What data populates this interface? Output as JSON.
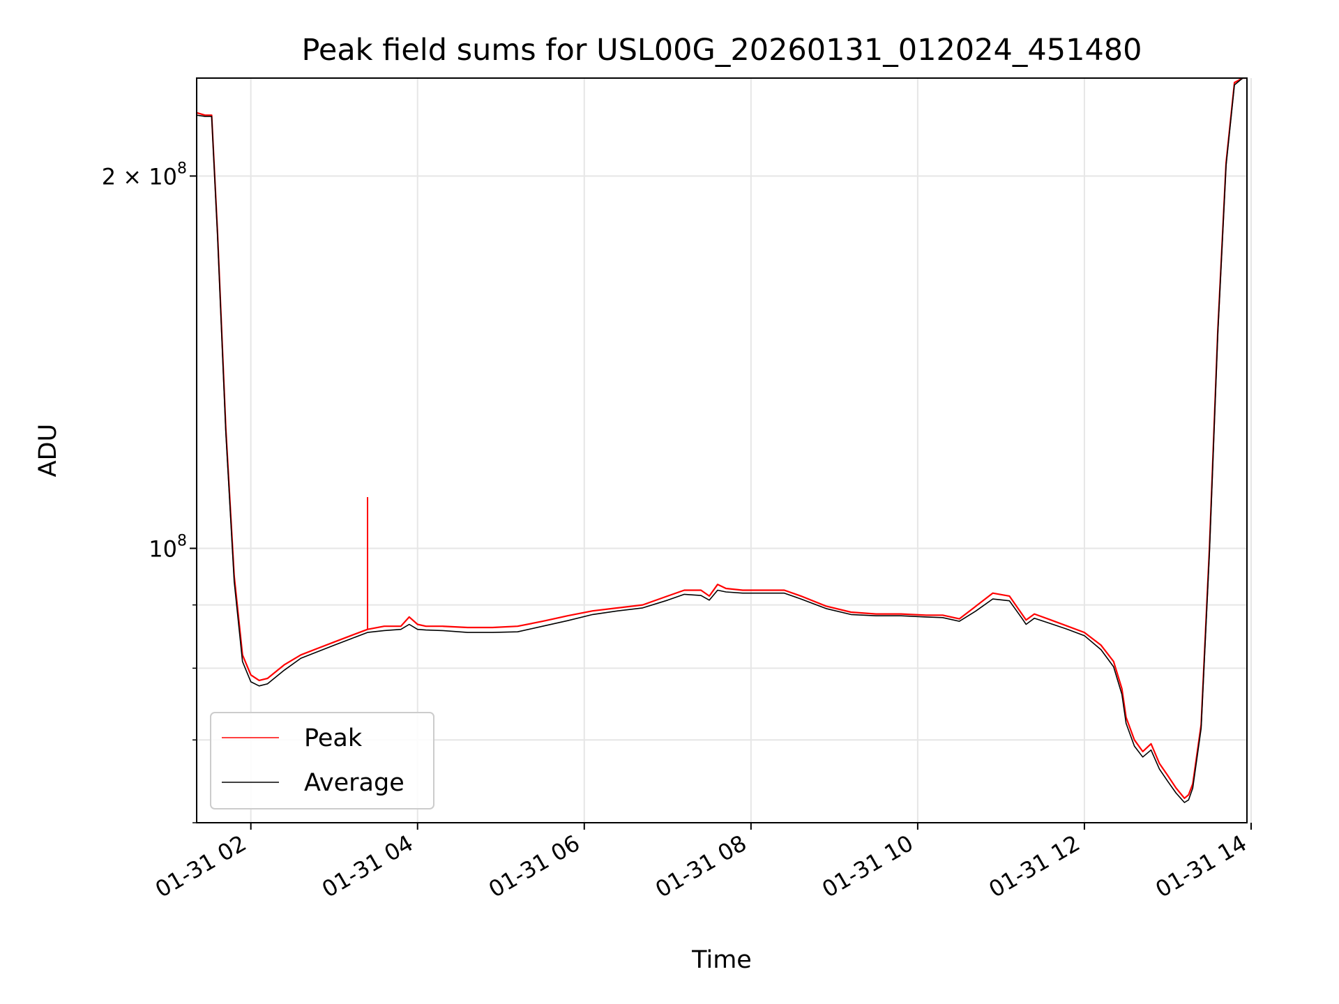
{
  "chart_data": {
    "type": "line",
    "title": "Peak field sums for USL00G_20260131_012024_451480",
    "xlabel": "Time",
    "ylabel": "ADU",
    "yscale": "log",
    "xlim_hours": [
      1.35,
      13.95
    ],
    "ylim": [
      60000000,
      240000000
    ],
    "grid": true,
    "legend_position": "lower-left",
    "x_ticks": [
      {
        "hour": 2,
        "label": "01-31 02"
      },
      {
        "hour": 4,
        "label": "01-31 04"
      },
      {
        "hour": 6,
        "label": "01-31 06"
      },
      {
        "hour": 8,
        "label": "01-31 08"
      },
      {
        "hour": 10,
        "label": "01-31 10"
      },
      {
        "hour": 12,
        "label": "01-31 12"
      },
      {
        "hour": 14,
        "label": "01-31 14"
      }
    ],
    "y_major_ticks": [
      {
        "value": 100000000,
        "base": "10",
        "exp": "8"
      },
      {
        "value": 200000000,
        "mantissa": "2",
        "base": "10",
        "exp": "8"
      }
    ],
    "y_minor_ticks": [
      60000000,
      70000000,
      80000000,
      90000000
    ],
    "x_hours": [
      1.35,
      1.45,
      1.53,
      1.6,
      1.7,
      1.8,
      1.9,
      2.0,
      2.1,
      2.2,
      2.4,
      2.6,
      2.8,
      3.0,
      3.2,
      3.4,
      3.6,
      3.8,
      3.9,
      4.0,
      4.1,
      4.3,
      4.6,
      4.9,
      5.2,
      5.5,
      5.8,
      6.1,
      6.4,
      6.7,
      7.0,
      7.2,
      7.4,
      7.5,
      7.6,
      7.7,
      7.9,
      8.1,
      8.4,
      8.6,
      8.9,
      9.2,
      9.5,
      9.8,
      10.1,
      10.3,
      10.5,
      10.7,
      10.9,
      11.1,
      11.25,
      11.3,
      11.4,
      11.6,
      11.8,
      12.0,
      12.2,
      12.35,
      12.45,
      12.5,
      12.6,
      12.7,
      12.8,
      12.9,
      13.0,
      13.1,
      13.2,
      13.25,
      13.3,
      13.4,
      13.5,
      13.6,
      13.7,
      13.8,
      13.9,
      13.95
    ],
    "series": [
      {
        "name": "Peak",
        "color": "#ff0000",
        "values": [
          225000000,
          224000000,
          224000000,
          180000000,
          125000000,
          95000000,
          82000000,
          79000000,
          78200000,
          78500000,
          80500000,
          82000000,
          83000000,
          84000000,
          85000000,
          86000000,
          86500000,
          86500000,
          88000000,
          86800000,
          86500000,
          86500000,
          86300000,
          86300000,
          86500000,
          87300000,
          88200000,
          89000000,
          89500000,
          90000000,
          91500000,
          92500000,
          92500000,
          91500000,
          93500000,
          92800000,
          92500000,
          92500000,
          92500000,
          91500000,
          89800000,
          88800000,
          88500000,
          88500000,
          88300000,
          88300000,
          87700000,
          89800000,
          92000000,
          91500000,
          88500000,
          87500000,
          88500000,
          87500000,
          86500000,
          85500000,
          83500000,
          81000000,
          77000000,
          73000000,
          70000000,
          68500000,
          69500000,
          67000000,
          65500000,
          64000000,
          62800000,
          63200000,
          64500000,
          72000000,
          100000000,
          150000000,
          205000000,
          238000000,
          240000000,
          240000000
        ]
      },
      {
        "name": "Average",
        "color": "#000000",
        "values": [
          224000000,
          223500000,
          223500000,
          179000000,
          124000000,
          94000000,
          81000000,
          78000000,
          77400000,
          77700000,
          79700000,
          81500000,
          82500000,
          83500000,
          84500000,
          85500000,
          85800000,
          86000000,
          86800000,
          86000000,
          85900000,
          85800000,
          85500000,
          85500000,
          85600000,
          86500000,
          87400000,
          88400000,
          89000000,
          89500000,
          90800000,
          91800000,
          91600000,
          90800000,
          92500000,
          92200000,
          92000000,
          92000000,
          92000000,
          91000000,
          89400000,
          88400000,
          88200000,
          88200000,
          88000000,
          87900000,
          87300000,
          89000000,
          91000000,
          90700000,
          87800000,
          86800000,
          87800000,
          86900000,
          86000000,
          85000000,
          82800000,
          80200000,
          76200000,
          72200000,
          69200000,
          67800000,
          68700000,
          66300000,
          64800000,
          63400000,
          62300000,
          62600000,
          64000000,
          71500000,
          99000000,
          149000000,
          204000000,
          237000000,
          240000000,
          240000000
        ]
      }
    ],
    "spikes": [
      {
        "series": "Peak",
        "hour": 3.4,
        "value": 110000000
      }
    ]
  }
}
